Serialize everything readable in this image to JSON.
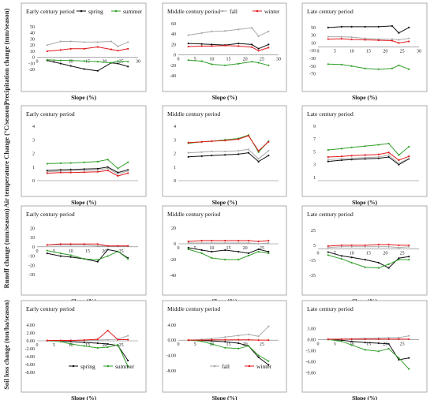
{
  "rows": [
    {
      "ylabel": "Precipitation change (mm/season)",
      "ylim": [
        -40,
        60
      ],
      "panels": [
        {
          "title": "Early century period",
          "xticks": [
            0,
            5,
            10,
            15,
            20,
            25,
            30
          ],
          "yticks": [
            50,
            40,
            30,
            20,
            10,
            0,
            -10,
            -20
          ],
          "ylim": [
            -30,
            55
          ],
          "zeroLine": true,
          "legend": [
            "spring",
            "summer"
          ]
        },
        {
          "title": "Middle century period",
          "xticks": [
            0,
            5,
            10,
            15,
            20,
            25,
            30
          ],
          "yticks": [
            60,
            40,
            20,
            0,
            -20,
            -40
          ],
          "ylim": [
            -40,
            60
          ],
          "zeroLine": true,
          "legend": [
            "fall",
            "winter"
          ]
        },
        {
          "title": "Late century period",
          "xticks": [
            0,
            5,
            10,
            15,
            20,
            25,
            30
          ],
          "yticks": [
            50,
            30,
            10,
            -10,
            -30,
            -50,
            -70
          ],
          "ylim": [
            -75,
            60
          ],
          "zeroLine": true,
          "legend": []
        }
      ]
    },
    {
      "ylabel": "Air temperature Change (°C/season)",
      "panels": [
        {
          "title": "Early century period",
          "xticks": [],
          "yticks": [
            4,
            3,
            2,
            1,
            0
          ],
          "ylim": [
            0,
            4
          ],
          "zeroLine": false,
          "legend": []
        },
        {
          "title": "Middle century period",
          "xticks": [],
          "yticks": [
            4,
            3,
            2,
            1,
            0
          ],
          "ylim": [
            0,
            4
          ],
          "zeroLine": false,
          "legend": []
        },
        {
          "title": "Late century period",
          "xticks": [],
          "yticks": [
            9,
            7,
            5,
            3,
            1
          ],
          "ylim": [
            0.5,
            9
          ],
          "zeroLine": false,
          "legend": []
        }
      ]
    },
    {
      "ylabel": "Runoff change (mm/season)",
      "panels": [
        {
          "title": "Early century period",
          "xticks": [
            0,
            5,
            10,
            15,
            20,
            25
          ],
          "yticks": [
            20,
            10,
            0,
            -10,
            -20,
            -30
          ],
          "ylim": [
            -35,
            22
          ],
          "zeroLine": true,
          "legend": []
        },
        {
          "title": "Middle century period",
          "xticks": [
            0,
            5,
            10,
            15,
            20,
            25
          ],
          "yticks": [
            20,
            0,
            -20,
            -40
          ],
          "ylim": [
            -45,
            22
          ],
          "zeroLine": true,
          "legend": []
        },
        {
          "title": "Late century period",
          "xticks": [
            0,
            5,
            10,
            15,
            20,
            25
          ],
          "yticks": [
            25,
            5,
            -15,
            -35
          ],
          "ylim": [
            -40,
            30
          ],
          "zeroLine": true,
          "legend": []
        }
      ]
    },
    {
      "ylabel": "Soil loss change (ton/ha/season)",
      "panels": [
        {
          "title": "Early century period",
          "xticks": [
            0,
            5,
            10,
            15,
            20,
            25
          ],
          "yticks": [
            "4.00",
            "2.00",
            "0.00",
            "-2.00",
            "-4.00",
            "-6.00",
            "-8.00"
          ],
          "ylim": [
            -9,
            5
          ],
          "zeroLine": true,
          "legend": [
            "spring",
            "summer"
          ]
        },
        {
          "title": "Middle century period",
          "xticks": [
            0,
            5,
            10,
            15,
            20,
            25
          ],
          "yticks": [
            "4.00",
            "0.00",
            "-4.00",
            "-8.00"
          ],
          "ylim": [
            -9.5,
            5
          ],
          "zeroLine": true,
          "legend": [
            "fall",
            "winter"
          ]
        },
        {
          "title": "Late century period",
          "xticks": [
            0,
            5,
            10,
            15,
            20,
            25
          ],
          "yticks": [
            "3.00",
            "0.00",
            "-3.00",
            "-6.00",
            "-9.00"
          ],
          "ylim": [
            -10,
            5
          ],
          "zeroLine": true,
          "legend": []
        }
      ]
    }
  ],
  "xlabel": "Slope (%)",
  "colors": {
    "spring": "#111111",
    "summer": "#33a02c",
    "fall": "#aaaaaa",
    "winter": "#e41a1c"
  },
  "chart_data": [
    {
      "type": "line",
      "title": "Early century period",
      "ylabel": "Precipitation change (mm/season)",
      "xlabel": "Slope (%)",
      "x": [
        3,
        7,
        10,
        14,
        18,
        22,
        24,
        27
      ],
      "series": [
        {
          "name": "spring",
          "values": [
            -5,
            -10,
            -14,
            -19,
            -22,
            -9,
            -10,
            -15
          ]
        },
        {
          "name": "summer",
          "values": [
            -4,
            -5,
            -5,
            -6,
            -7,
            -9,
            -6,
            -7
          ]
        },
        {
          "name": "fall",
          "values": [
            20,
            26,
            26,
            25,
            25,
            26,
            18,
            25
          ]
        },
        {
          "name": "winter",
          "values": [
            10,
            12,
            14,
            14,
            17,
            13,
            11,
            14
          ]
        }
      ]
    },
    {
      "type": "line",
      "title": "Middle century period",
      "xlabel": "Slope (%)",
      "x": [
        3,
        7,
        10,
        14,
        18,
        22,
        24,
        27
      ],
      "series": [
        {
          "name": "spring",
          "values": [
            22,
            21,
            20,
            19,
            22,
            20,
            12,
            20
          ]
        },
        {
          "name": "summer",
          "values": [
            -10,
            -12,
            -18,
            -20,
            -17,
            -13,
            -15,
            -20
          ]
        },
        {
          "name": "fall",
          "values": [
            38,
            42,
            45,
            46,
            49,
            52,
            36,
            45
          ]
        },
        {
          "name": "winter",
          "values": [
            16,
            17,
            17,
            18,
            17,
            15,
            8,
            14
          ]
        }
      ]
    },
    {
      "type": "line",
      "title": "Late century period",
      "xlabel": "Slope (%)",
      "x": [
        3,
        7,
        10,
        14,
        18,
        22,
        24,
        27
      ],
      "series": [
        {
          "name": "spring",
          "values": [
            50,
            52,
            52,
            52,
            52,
            54,
            36,
            50
          ]
        },
        {
          "name": "summer",
          "values": [
            -45,
            -46,
            -50,
            -56,
            -58,
            -56,
            -48,
            -58
          ]
        },
        {
          "name": "fall",
          "values": [
            26,
            26,
            25,
            22,
            20,
            20,
            18,
            22
          ]
        },
        {
          "name": "winter",
          "values": [
            20,
            21,
            19,
            18,
            17,
            16,
            10,
            14
          ]
        }
      ]
    },
    {
      "type": "line",
      "title": "Early century period",
      "ylabel": "Air temperature Change (°C/season)",
      "xlabel": "Slope (%)",
      "x": [
        3,
        7,
        10,
        14,
        18,
        21,
        24,
        27
      ],
      "series": [
        {
          "name": "spring",
          "values": [
            0.75,
            0.8,
            0.82,
            0.85,
            0.88,
            1.0,
            0.6,
            0.8
          ]
        },
        {
          "name": "summer",
          "values": [
            1.25,
            1.28,
            1.3,
            1.35,
            1.4,
            1.55,
            0.9,
            1.35
          ]
        },
        {
          "name": "fall",
          "values": [
            0.65,
            0.7,
            0.72,
            0.75,
            0.78,
            0.9,
            0.5,
            0.72
          ]
        },
        {
          "name": "winter",
          "values": [
            0.55,
            0.6,
            0.6,
            0.62,
            0.65,
            0.75,
            0.35,
            0.55
          ]
        }
      ]
    },
    {
      "type": "line",
      "title": "Middle century period",
      "xlabel": "Slope (%)",
      "x": [
        3,
        7,
        10,
        14,
        18,
        21,
        24,
        27
      ],
      "series": [
        {
          "name": "spring",
          "values": [
            1.75,
            1.8,
            1.85,
            1.9,
            1.95,
            2.05,
            1.4,
            1.85
          ]
        },
        {
          "name": "summer",
          "values": [
            2.75,
            2.85,
            2.9,
            3.0,
            3.1,
            3.35,
            2.1,
            2.9
          ]
        },
        {
          "name": "fall",
          "values": [
            2.05,
            2.1,
            2.15,
            2.15,
            2.2,
            2.3,
            1.6,
            2.2
          ]
        },
        {
          "name": "winter",
          "values": [
            2.8,
            2.85,
            2.9,
            2.95,
            3.05,
            3.3,
            2.2,
            2.85
          ]
        }
      ]
    },
    {
      "type": "line",
      "title": "Late century period",
      "xlabel": "Slope (%)",
      "x": [
        3,
        7,
        10,
        14,
        18,
        21,
        24,
        27
      ],
      "series": [
        {
          "name": "spring",
          "values": [
            3.5,
            3.7,
            3.8,
            3.9,
            4.0,
            4.2,
            3.0,
            3.9
          ]
        },
        {
          "name": "summer",
          "values": [
            5.3,
            5.5,
            5.7,
            5.9,
            6.1,
            6.3,
            4.5,
            5.8
          ]
        },
        {
          "name": "fall",
          "values": [
            3.8,
            3.9,
            4.0,
            4.1,
            4.2,
            4.5,
            3.2,
            4.0
          ]
        },
        {
          "name": "winter",
          "values": [
            4.2,
            4.3,
            4.4,
            4.5,
            4.6,
            4.9,
            3.7,
            4.3
          ]
        }
      ]
    },
    {
      "type": "line",
      "title": "Early century period",
      "ylabel": "Runoff change (mm/season)",
      "xlabel": "Slope (%)",
      "x": [
        3,
        7,
        10,
        14,
        18,
        21,
        24,
        27
      ],
      "series": [
        {
          "name": "spring",
          "values": [
            -7,
            -10,
            -11,
            -13,
            -16,
            -3,
            -5,
            -12
          ]
        },
        {
          "name": "summer",
          "values": [
            -4,
            -7,
            -9,
            -13,
            -14,
            -10,
            -5,
            -13
          ]
        },
        {
          "name": "fall",
          "values": [
            2,
            2,
            2,
            2,
            1,
            1,
            1,
            1
          ]
        },
        {
          "name": "winter",
          "values": [
            2,
            3,
            3,
            3,
            3,
            1,
            1,
            1
          ]
        }
      ]
    },
    {
      "type": "line",
      "title": "Middle century period",
      "xlabel": "Slope (%)",
      "x": [
        3,
        7,
        10,
        14,
        18,
        21,
        24,
        27
      ],
      "series": [
        {
          "name": "spring",
          "values": [
            -5,
            -8,
            -10,
            -8,
            -10,
            -12,
            -7,
            -10
          ]
        },
        {
          "name": "summer",
          "values": [
            -7,
            -12,
            -18,
            -20,
            -20,
            -15,
            -10,
            -12
          ]
        },
        {
          "name": "fall",
          "values": [
            1,
            1,
            1,
            1,
            1,
            1,
            0,
            1
          ]
        },
        {
          "name": "winter",
          "values": [
            3,
            4,
            4,
            4,
            4,
            4,
            3,
            4
          ]
        }
      ]
    },
    {
      "type": "line",
      "title": "Late century period",
      "xlabel": "Slope (%)",
      "x": [
        3,
        7,
        10,
        14,
        18,
        21,
        24,
        27
      ],
      "series": [
        {
          "name": "spring",
          "values": [
            -4,
            -9,
            -11,
            -14,
            -18,
            -25,
            -12,
            -10
          ]
        },
        {
          "name": "summer",
          "values": [
            -8,
            -13,
            -18,
            -24,
            -25,
            -20,
            -14,
            -14
          ]
        },
        {
          "name": "fall",
          "values": [
            2,
            3,
            3,
            3,
            3,
            3,
            2,
            3
          ]
        },
        {
          "name": "winter",
          "values": [
            4,
            5,
            5,
            5,
            6,
            6,
            5,
            5
          ]
        }
      ]
    },
    {
      "type": "line",
      "title": "Early century period",
      "ylabel": "Soil loss change (ton/ha/season)",
      "xlabel": "Slope (%)",
      "x": [
        3,
        7,
        10,
        14,
        18,
        21,
        24,
        27
      ],
      "series": [
        {
          "name": "spring",
          "values": [
            0.0,
            -0.1,
            -0.2,
            -0.4,
            -0.6,
            -0.8,
            -1.2,
            -5.0
          ]
        },
        {
          "name": "summer",
          "values": [
            0.0,
            -0.2,
            -0.8,
            -1.3,
            -1.8,
            -1.6,
            -1.0,
            -6.5
          ]
        },
        {
          "name": "fall",
          "values": [
            0.0,
            0.0,
            0.1,
            0.1,
            0.2,
            0.3,
            0.4,
            1.3
          ]
        },
        {
          "name": "winter",
          "values": [
            0.1,
            0.1,
            0.1,
            0.2,
            0.4,
            2.6,
            0.3,
            0.3
          ]
        }
      ]
    },
    {
      "type": "line",
      "title": "Middle century period",
      "xlabel": "Slope (%)",
      "x": [
        3,
        7,
        10,
        14,
        18,
        21,
        24,
        27
      ],
      "series": [
        {
          "name": "spring",
          "values": [
            0.0,
            -0.1,
            -0.2,
            -0.4,
            -0.8,
            -1.5,
            -4.5,
            -6.5
          ]
        },
        {
          "name": "summer",
          "values": [
            0.0,
            -0.3,
            -1.0,
            -2.0,
            -2.2,
            -1.5,
            -4.0,
            -5.5
          ]
        },
        {
          "name": "fall",
          "values": [
            0.0,
            0.2,
            0.4,
            0.8,
            1.2,
            1.5,
            1.0,
            3.6
          ]
        },
        {
          "name": "winter",
          "values": [
            0.0,
            0.0,
            0.1,
            0.1,
            0.1,
            0.1,
            0.0,
            0.0
          ]
        }
      ]
    },
    {
      "type": "line",
      "title": "Late century period",
      "xlabel": "Slope (%)",
      "x": [
        3,
        7,
        10,
        14,
        18,
        21,
        24,
        27
      ],
      "series": [
        {
          "name": "spring",
          "values": [
            0.0,
            -0.2,
            -0.5,
            -0.8,
            -1.0,
            -1.2,
            -5.5,
            -5.0
          ]
        },
        {
          "name": "summer",
          "values": [
            0.0,
            -0.5,
            -1.5,
            -2.8,
            -3.2,
            -2.5,
            -5.0,
            -8.0
          ]
        },
        {
          "name": "fall",
          "values": [
            0.0,
            0.1,
            0.2,
            0.3,
            0.4,
            0.5,
            0.5,
            1.0
          ]
        },
        {
          "name": "winter",
          "values": [
            0.1,
            0.1,
            0.1,
            0.1,
            0.1,
            0.1,
            0.1,
            0.1
          ]
        }
      ]
    }
  ]
}
